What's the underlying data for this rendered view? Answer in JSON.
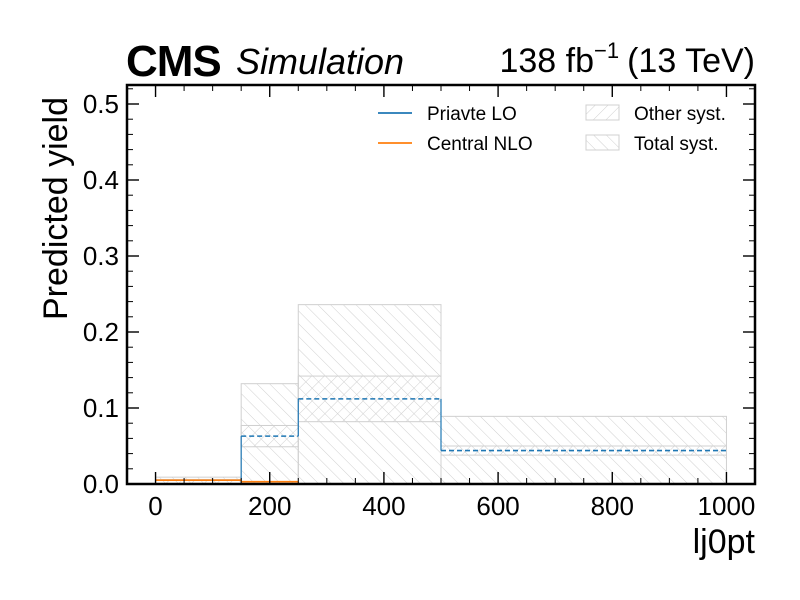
{
  "header": {
    "experiment": "CMS",
    "subtitle": "Simulation",
    "lumi_value": "138 fb",
    "lumi_exponent": "−1",
    "lumi_energy": "(13 TeV)"
  },
  "chart_data": {
    "type": "histogram",
    "xlabel": "lj0pt",
    "ylabel": "Predicted yield",
    "xlim": [
      -50,
      1050
    ],
    "ylim": [
      0,
      0.525
    ],
    "x_ticks": [
      0,
      200,
      400,
      600,
      800,
      1000
    ],
    "y_ticks": [
      0.0,
      0.1,
      0.2,
      0.3,
      0.4,
      0.5
    ],
    "x_tick_labels": [
      "0",
      "200",
      "400",
      "600",
      "800",
      "1000"
    ],
    "y_tick_labels": [
      "0.0",
      "0.1",
      "0.2",
      "0.3",
      "0.4",
      "0.5"
    ],
    "grid": false,
    "legend_position": "top-right",
    "bin_edges": [
      0,
      150,
      250,
      500,
      1000
    ],
    "series": [
      {
        "name": "Priavte LO",
        "color": "#1f77b4",
        "values": [
          0.0,
          0.063,
          0.112,
          0.044
        ]
      },
      {
        "name": "Central NLO",
        "color": "#ff7f0e",
        "values": [
          0.005,
          0.003,
          0.0,
          0.0
        ]
      }
    ],
    "bands": [
      {
        "name": "Other syst.",
        "hatch": "forward",
        "color": "#d0d0d0",
        "low": [
          0.0,
          0.049,
          0.082,
          0.038
        ],
        "high": [
          0.006,
          0.077,
          0.142,
          0.05
        ]
      },
      {
        "name": "Total syst.",
        "hatch": "backward",
        "color": "#d0d0d0",
        "low": [
          0.0,
          0.0,
          0.0,
          0.0
        ],
        "high": [
          0.009,
          0.132,
          0.236,
          0.089
        ]
      }
    ]
  }
}
